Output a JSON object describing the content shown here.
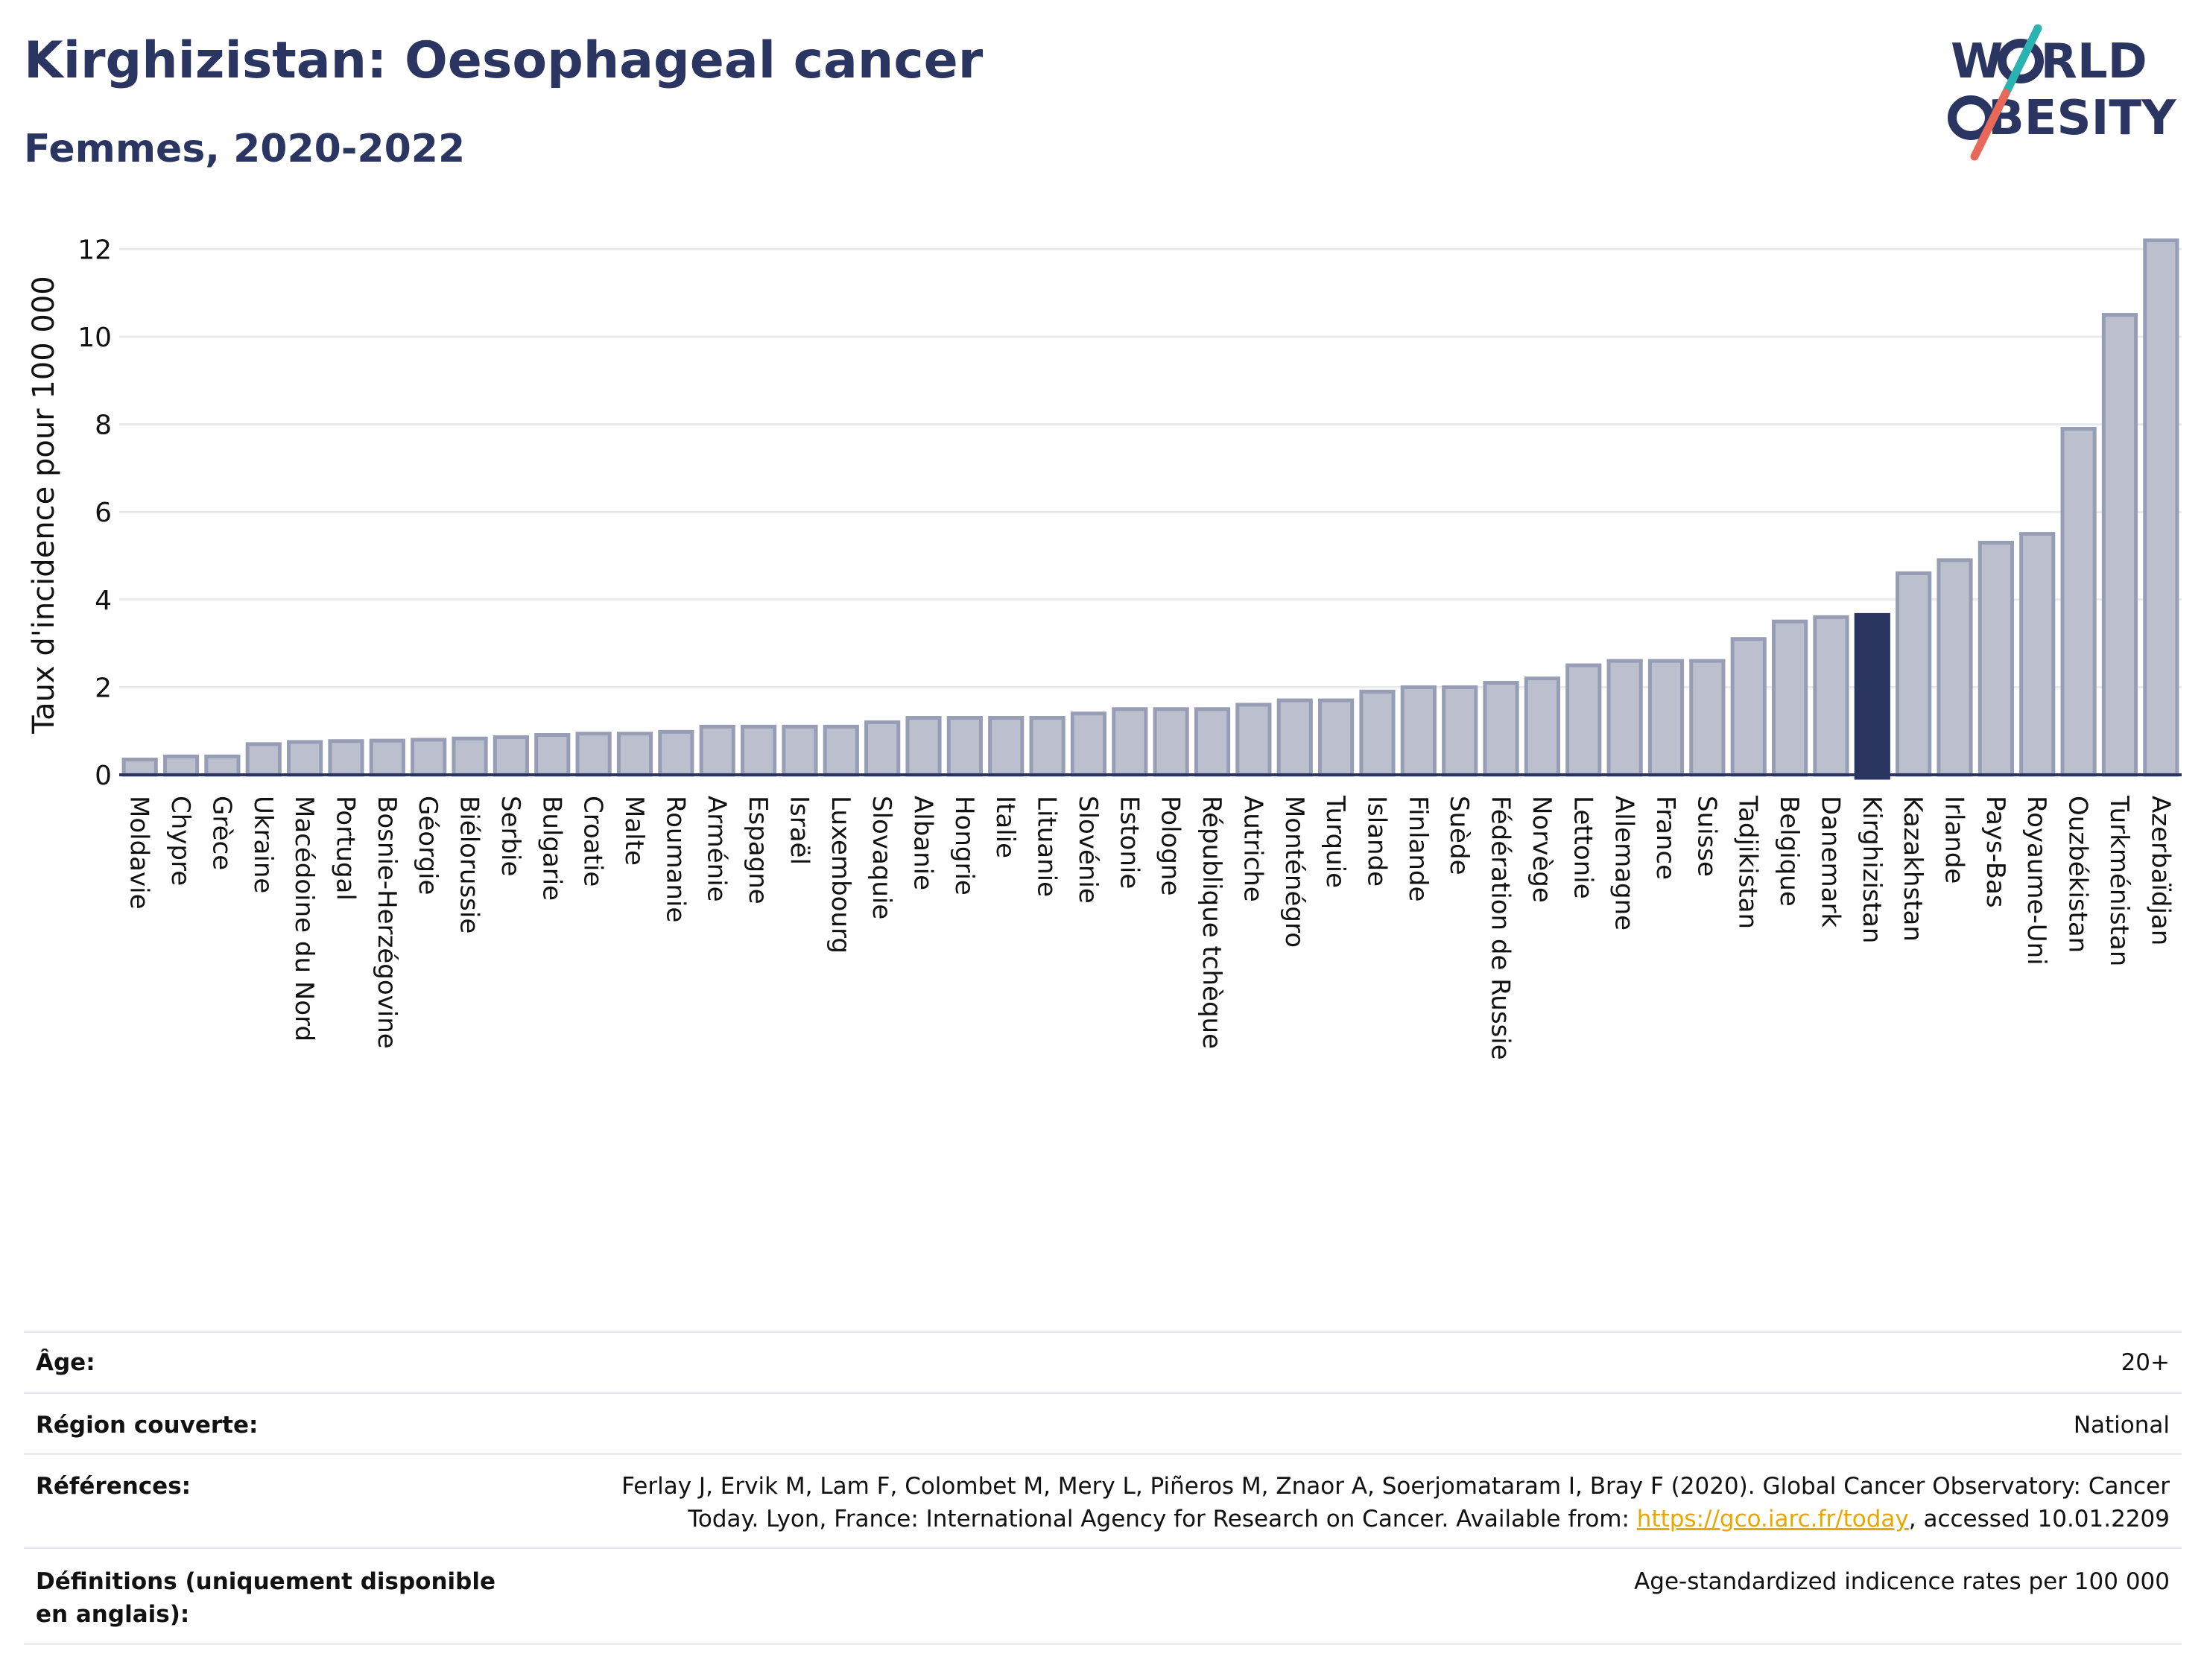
{
  "title": "Kirghizistan: Oesophageal cancer",
  "subtitle": "Femmes, 2020-2022",
  "logo": {
    "line1": "W",
    "line1b": "RLD",
    "line2": "BESITY",
    "colors": {
      "text": "#2b3561",
      "slash_top": "#2bb3b1",
      "slash_bottom": "#e8685a"
    }
  },
  "chart_data": {
    "type": "bar",
    "ylabel": "Taux d'incidence pour 100 000",
    "xlabel": "",
    "ylim": [
      0,
      12.5
    ],
    "yticks": [
      0,
      2,
      4,
      6,
      8,
      10,
      12
    ],
    "highlight": "Kirghizistan",
    "colors": {
      "bar": "#bcc0ce",
      "bar_edge": "#979db4",
      "highlight": "#2b3561",
      "grid": "#e8eaf0",
      "axis": "#2b3561"
    },
    "categories": [
      "Moldavie",
      "Chypre",
      "Grèce",
      "Ukraine",
      "Macédoine du Nord",
      "Portugal",
      "Bosnie-Herzégovine",
      "Géorgie",
      "Biélorussie",
      "Serbie",
      "Bulgarie",
      "Croatie",
      "Malte",
      "Roumanie",
      "Arménie",
      "Espagne",
      "Israël",
      "Luxembourg",
      "Slovaquie",
      "Albanie",
      "Hongrie",
      "Italie",
      "Lituanie",
      "Slovénie",
      "Estonie",
      "Pologne",
      "République tchèque",
      "Autriche",
      "Monténégro",
      "Turquie",
      "Islande",
      "Finlande",
      "Suède",
      "Fédération de Russie",
      "Norvège",
      "Lettonie",
      "Allemagne",
      "France",
      "Suisse",
      "Tadjikistan",
      "Belgique",
      "Danemark",
      "Kirghizistan",
      "Kazakhstan",
      "Irlande",
      "Pays-Bas",
      "Royaume-Uni",
      "Ouzbékistan",
      "Turkménistan",
      "Azerbaïdjan"
    ],
    "values": [
      0.35,
      0.42,
      0.42,
      0.7,
      0.75,
      0.77,
      0.78,
      0.8,
      0.83,
      0.86,
      0.91,
      0.94,
      0.94,
      0.98,
      1.1,
      1.1,
      1.1,
      1.1,
      1.2,
      1.3,
      1.3,
      1.3,
      1.3,
      1.4,
      1.5,
      1.5,
      1.5,
      1.6,
      1.7,
      1.7,
      1.9,
      2.0,
      2.0,
      2.1,
      2.2,
      2.5,
      2.6,
      2.6,
      2.6,
      3.1,
      3.5,
      3.6,
      3.65,
      4.6,
      4.9,
      5.3,
      5.5,
      7.9,
      10.5,
      12.2
    ]
  },
  "meta": {
    "age_label": "Âge:",
    "age_value": "20+",
    "region_label": "Région couverte:",
    "region_value": "National",
    "ref_label": "Références:",
    "ref_line1": "Ferlay J, Ervik M, Lam F, Colombet M, Mery L, Piñeros M, Znaor A, Soerjomataram I, Bray F (2020). Global Cancer Observatory: Cancer",
    "ref_line2_pre": "Today. Lyon, France: International Agency for Research on Cancer. Available from: ",
    "ref_link": "https://gco.iarc.fr/today",
    "ref_line2_post": ", accessed 10.01.2209",
    "def_label": "Définitions (uniquement disponible en anglais):",
    "def_value": "Age-standardized indicence rates per 100 000"
  }
}
